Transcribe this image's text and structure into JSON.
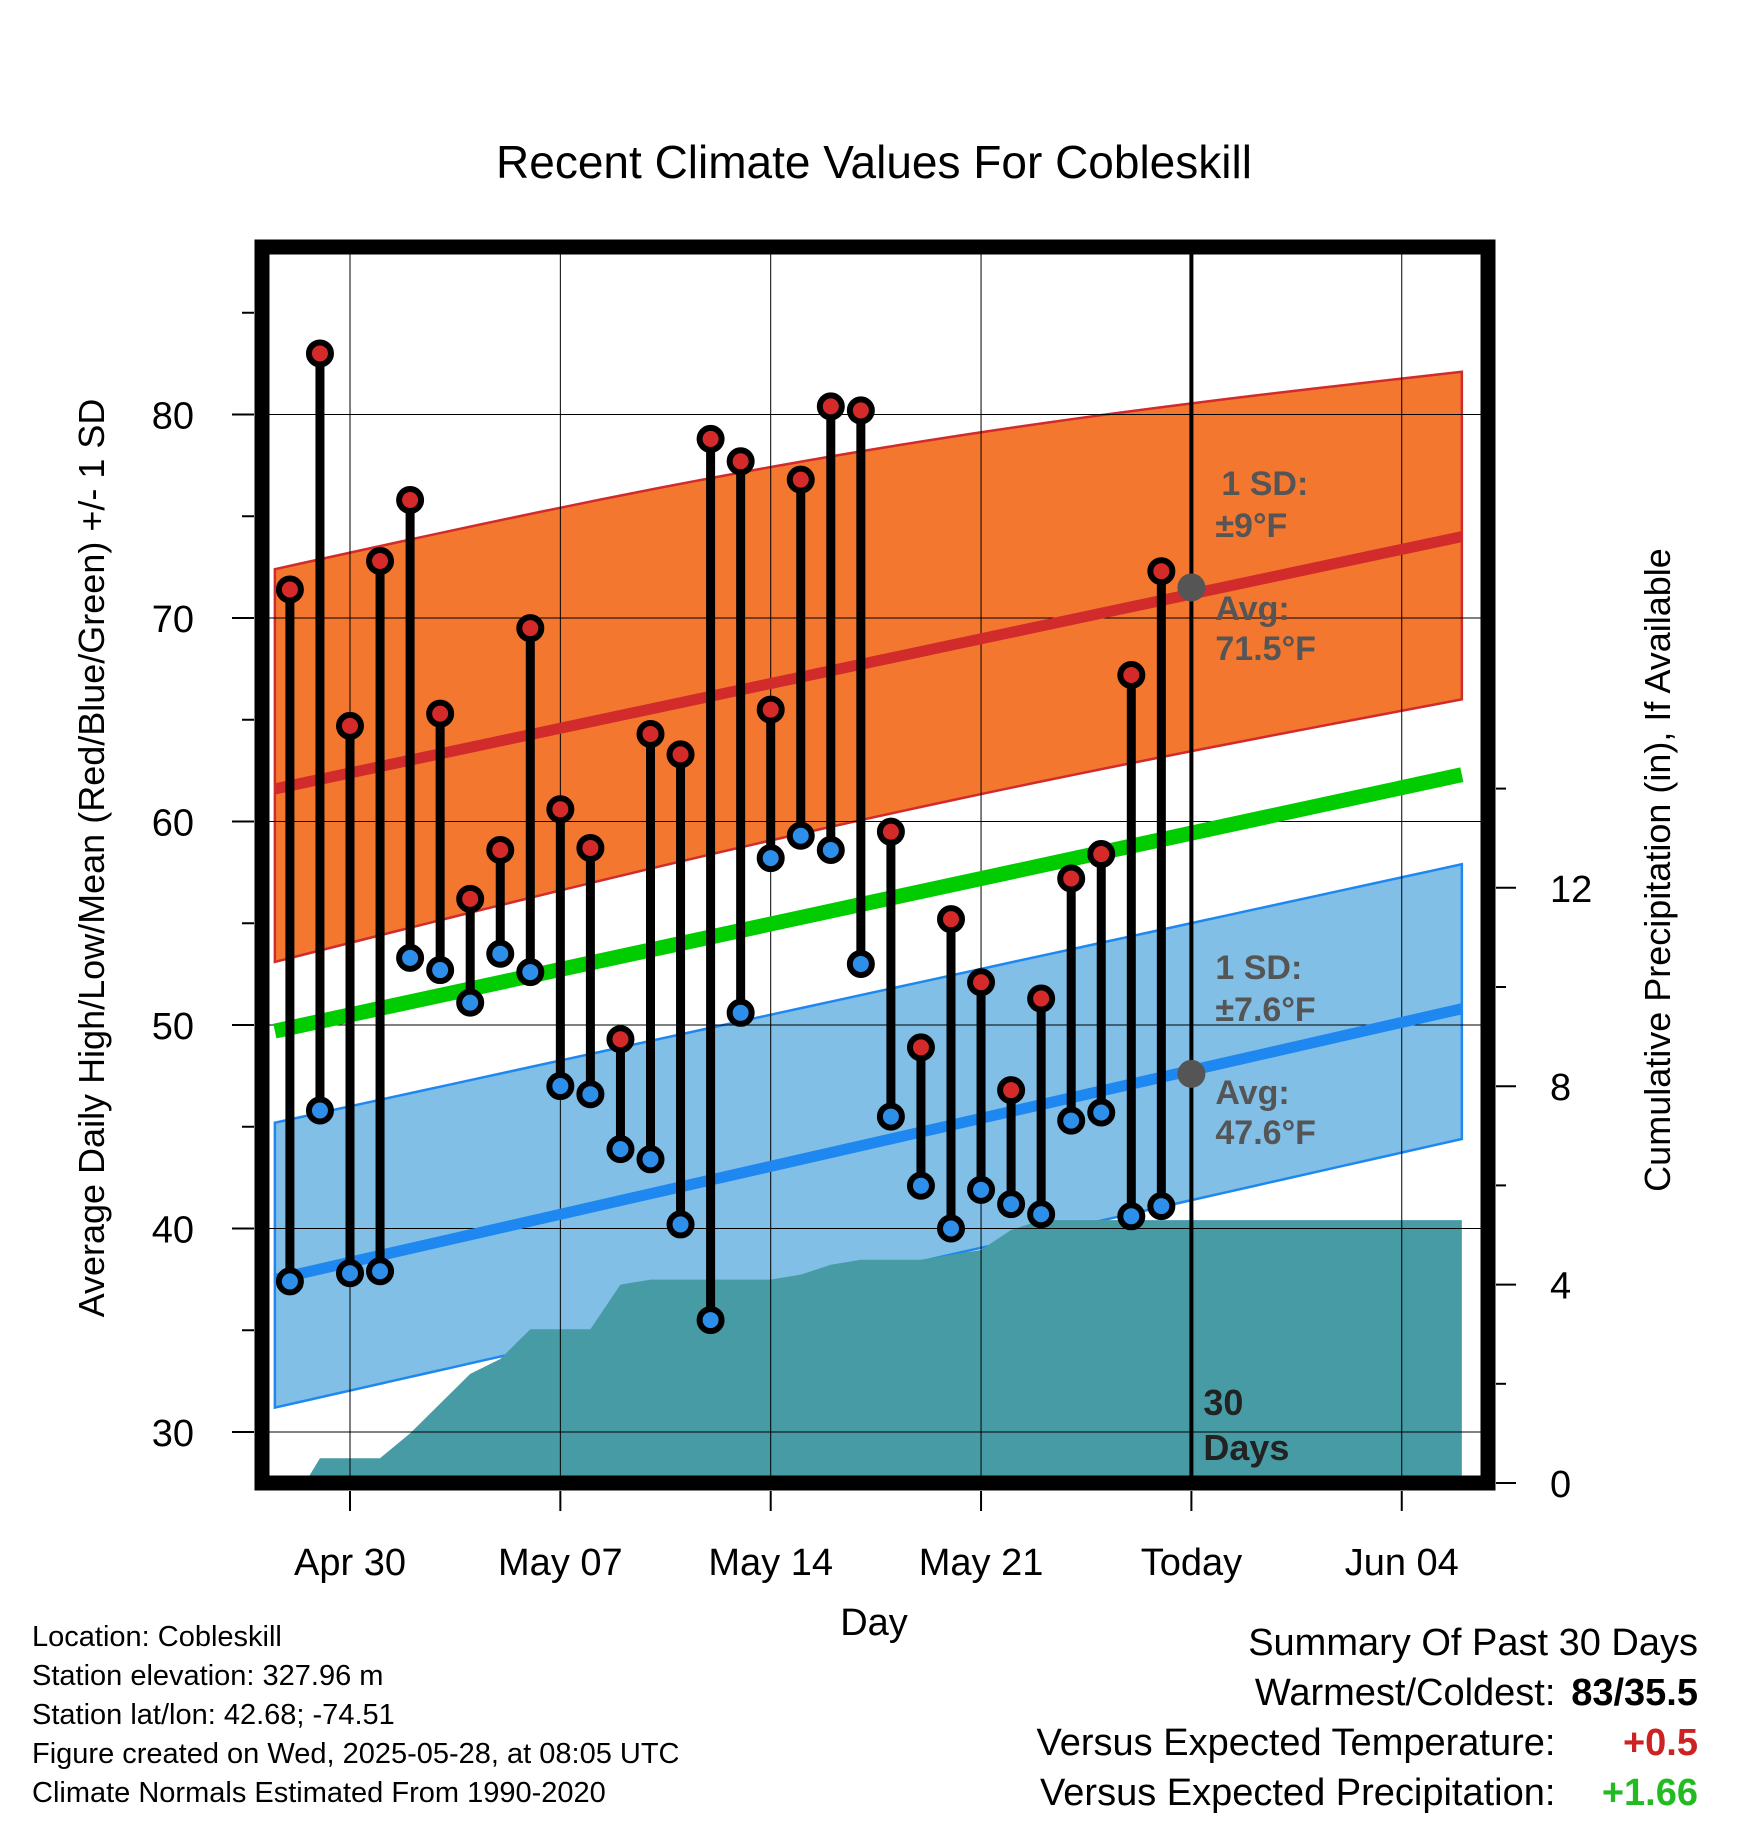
{
  "chart_data": {
    "type": "line",
    "title": "Recent Climate Values For Cobleskill",
    "xlabel": "Day",
    "ylabel": "Average Daily High/Low/Mean (Red/Blue/Green) +/- 1 SD",
    "y2label": "Cumulative Precipitation (in), If Available",
    "x_tick_labels": [
      "Apr 30",
      "May 07",
      "May 14",
      "May 21",
      "Today",
      "Jun 04"
    ],
    "x_tick_days": [
      0,
      7,
      14,
      21,
      28,
      35
    ],
    "xlim_days": [
      -2.5,
      37
    ],
    "ylim": [
      27.5,
      87
    ],
    "y_ticks": [
      30,
      40,
      50,
      60,
      70,
      80
    ],
    "y2_ticks": [
      0,
      4,
      8,
      12
    ],
    "y2lim": [
      0,
      24.2
    ],
    "grid": true,
    "today_day": 28,
    "today_label": [
      "30",
      "Days"
    ],
    "normals": {
      "day_start": -2.5,
      "day_end": 37,
      "high_avg": [
        61.6,
        74.0
      ],
      "high_upper": [
        72.4,
        82.1
      ],
      "high_lower": [
        53.1,
        66.0
      ],
      "mean_avg": [
        49.7,
        62.3
      ],
      "low_avg": [
        37.5,
        50.8
      ],
      "low_upper": [
        45.2,
        57.9
      ],
      "low_lower": [
        31.2,
        44.4
      ]
    },
    "high_annotation": {
      "sd": [
        "1 SD:",
        "±9°F"
      ],
      "avg": [
        "Avg:",
        "71.5°F"
      ],
      "avg_value": 71.5
    },
    "low_annotation": {
      "sd": [
        "1 SD:",
        "±7.6°F"
      ],
      "avg": [
        "Avg:",
        "47.6°F"
      ],
      "avg_value": 47.6
    },
    "days": [
      -2,
      -1,
      0,
      1,
      2,
      3,
      4,
      5,
      6,
      7,
      8,
      9,
      10,
      11,
      12,
      13,
      14,
      15,
      16,
      17,
      18,
      19,
      20,
      21,
      22,
      23,
      24,
      25,
      26,
      27
    ],
    "highs": [
      71.4,
      83.0,
      64.7,
      72.8,
      75.8,
      65.3,
      56.2,
      58.6,
      69.5,
      60.6,
      58.7,
      49.3,
      64.3,
      63.3,
      78.8,
      77.7,
      65.5,
      76.8,
      80.4,
      80.2,
      59.5,
      48.9,
      55.2,
      52.1,
      46.8,
      51.3,
      57.2,
      58.4,
      67.2,
      72.3
    ],
    "lows": [
      37.4,
      45.8,
      37.8,
      37.9,
      53.3,
      52.7,
      51.1,
      53.5,
      52.6,
      47.0,
      46.6,
      43.9,
      43.4,
      40.2,
      35.5,
      50.6,
      58.2,
      59.3,
      58.6,
      53.0,
      45.5,
      42.1,
      40.0,
      41.9,
      41.2,
      40.7,
      45.3,
      45.7,
      40.6,
      41.1
    ],
    "precip_days": [
      -1.5,
      -1.0,
      0.0,
      1.0,
      2.0,
      3.0,
      4.0,
      5.0,
      6.0,
      7.0,
      8.0,
      9.0,
      10.0,
      11.0,
      12.0,
      13.0,
      14.0,
      15.0,
      16.0,
      17.0,
      18.0,
      19.0,
      20.0,
      21.0,
      22.0,
      23.0,
      24.0,
      25.0,
      26.0,
      27.0,
      37.0
    ],
    "precip_cum": [
      0,
      0.5,
      0.5,
      0.5,
      1.0,
      1.6,
      2.2,
      2.5,
      3.1,
      3.1,
      3.1,
      4.0,
      4.1,
      4.1,
      4.1,
      4.1,
      4.1,
      4.2,
      4.4,
      4.5,
      4.5,
      4.5,
      4.6,
      4.7,
      5.1,
      5.3,
      5.3,
      5.3,
      5.3,
      5.3,
      5.3
    ],
    "colors": {
      "high_band": "#f4772f",
      "high_line": "#d22b2b",
      "low_band": "#81bfe7",
      "low_line": "#1e88f0",
      "mean_line": "#00cc00",
      "precip": "#479ba4",
      "high_marker": "#d42a2a",
      "low_marker": "#2e8fea",
      "annotation": "#555555"
    }
  },
  "info": {
    "location": "Location: Cobleskill",
    "elevation": "Station elevation: 327.96 m",
    "latlon": "Station lat/lon: 42.68; -74.51",
    "created": "Figure created on Wed, 2025-05-28, at 08:05 UTC",
    "normals": "Climate Normals Estimated From 1990-2020"
  },
  "summary": {
    "heading": "Summary Of Past 30 Days",
    "warm_cold_label": "Warmest/Coldest:",
    "warm_cold_value": "83/35.5",
    "temp_label": "Versus Expected Temperature:",
    "temp_value": "+0.5",
    "temp_color": "#cc2222",
    "precip_label": "Versus Expected Precipitation:",
    "precip_value": "+1.66",
    "precip_color": "#22bb22"
  }
}
